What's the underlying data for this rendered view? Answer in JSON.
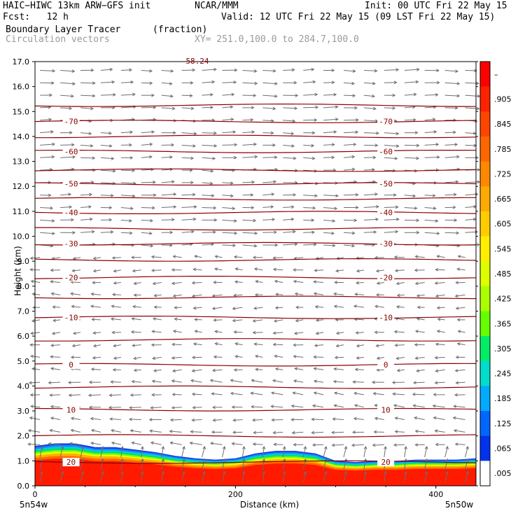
{
  "header": {
    "model": "HAIC−HIWC 13km ARW−GFS init",
    "org": "NCAR/MMM",
    "init": "Init: 00 UTC Fri 22 May 15",
    "fcst": "Fcst:   12 h",
    "valid": "Valid: 12 UTC Fri 22 May 15 (09 LST Fri 22 May 15)",
    "field": "Boundary Layer Tracer",
    "units": "(fraction)",
    "overlay": "Circulation vectors",
    "xsec": "XY= 251.0,100.0 to 284.7,100.0",
    "top_label": "58.24"
  },
  "chart_data": {
    "type": "heatmap",
    "xlabel": "Distance (km)",
    "ylabel": "Height (km)",
    "xlim": [
      0,
      440
    ],
    "ylim": [
      0,
      17
    ],
    "x_ticks": [
      "0",
      "200",
      "400"
    ],
    "x_tick_values": [
      0,
      200,
      400
    ],
    "x_end_labels": [
      "5n54w",
      "5n50w"
    ],
    "y_ticks": [
      "0.0",
      "1.0",
      "2.0",
      "3.0",
      "4.0",
      "5.0",
      "6.0",
      "7.0",
      "8.0",
      "9.0",
      "10.0",
      "11.0",
      "12.0",
      "13.0",
      "14.0",
      "15.0",
      "16.0",
      "17.0"
    ],
    "colorbar": {
      "labels": [
        "–",
        ".905",
        ".845",
        ".785",
        ".725",
        ".665",
        ".605",
        ".545",
        ".485",
        ".425",
        ".365",
        ".305",
        ".245",
        ".185",
        ".125",
        ".065",
        ".005"
      ],
      "colors": [
        "#ff0000",
        "#ff2200",
        "#ff4400",
        "#ff6600",
        "#ff8800",
        "#ffaa00",
        "#ffcc00",
        "#ffee00",
        "#ddff00",
        "#aaff00",
        "#66ff00",
        "#00ee66",
        "#00ddcc",
        "#00aaff",
        "#0066ff",
        "#0033ee",
        "#ffffff"
      ]
    },
    "temperature_contours": [
      {
        "label": "-70",
        "height": 14.6
      },
      {
        "label": "-60",
        "height": 13.4
      },
      {
        "label": "-50",
        "height": 12.1
      },
      {
        "label": "-40",
        "height": 10.95
      },
      {
        "label": "-30",
        "height": 9.7
      },
      {
        "label": "-20",
        "height": 8.35
      },
      {
        "label": "-10",
        "height": 6.75
      },
      {
        "label": "0",
        "height": 4.85
      },
      {
        "label": "10",
        "height": 3.05
      },
      {
        "label": "20",
        "height": 0.95
      }
    ],
    "tracer_top_km": [
      [
        0,
        1.6
      ],
      [
        20,
        1.7
      ],
      [
        40,
        1.7
      ],
      [
        60,
        1.55
      ],
      [
        80,
        1.55
      ],
      [
        100,
        1.45
      ],
      [
        120,
        1.35
      ],
      [
        140,
        1.2
      ],
      [
        160,
        1.1
      ],
      [
        180,
        1.05
      ],
      [
        200,
        1.1
      ],
      [
        220,
        1.3
      ],
      [
        240,
        1.4
      ],
      [
        260,
        1.4
      ],
      [
        280,
        1.3
      ],
      [
        300,
        1.0
      ],
      [
        320,
        0.95
      ],
      [
        340,
        1.0
      ],
      [
        360,
        1.0
      ],
      [
        380,
        1.05
      ],
      [
        400,
        1.05
      ],
      [
        420,
        1.05
      ],
      [
        440,
        1.1
      ]
    ]
  }
}
